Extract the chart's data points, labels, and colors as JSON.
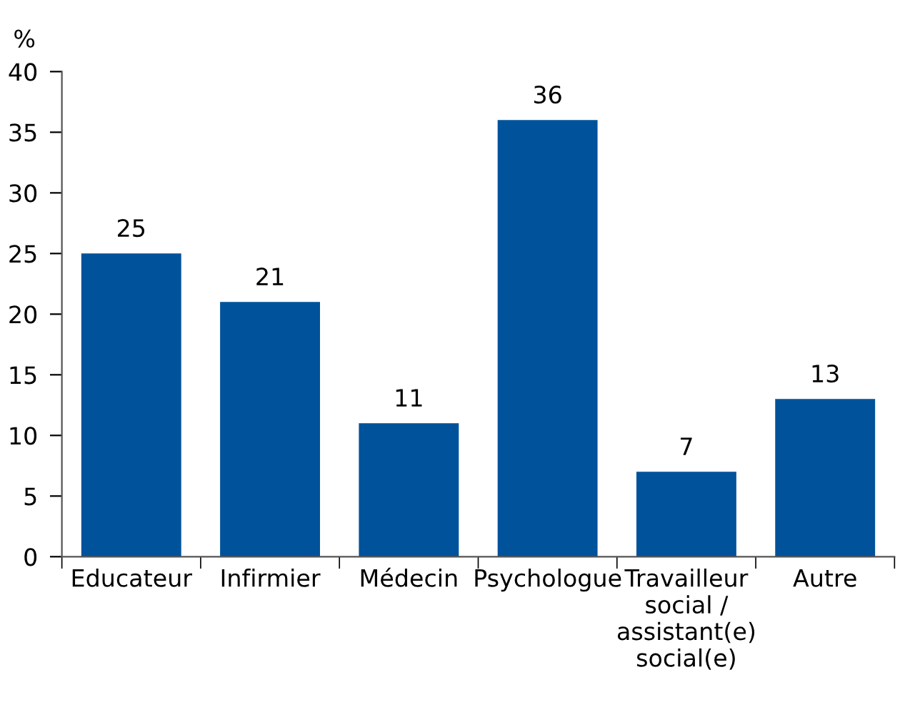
{
  "chart_data": {
    "type": "bar",
    "ylabel": "%",
    "categories": [
      "Educateur",
      "Infirmier",
      "Médecin",
      "Psychologue",
      "Travailleur\nsocial /\nassistant(e)\nsocial(e)",
      "Autre"
    ],
    "values": [
      25,
      21,
      11,
      36,
      7,
      13
    ],
    "color": "#00529b",
    "ylim": [
      0,
      40
    ],
    "yticks": [
      0,
      5,
      10,
      15,
      20,
      25,
      30,
      35,
      40
    ],
    "grid": false,
    "data_labels": true
  }
}
